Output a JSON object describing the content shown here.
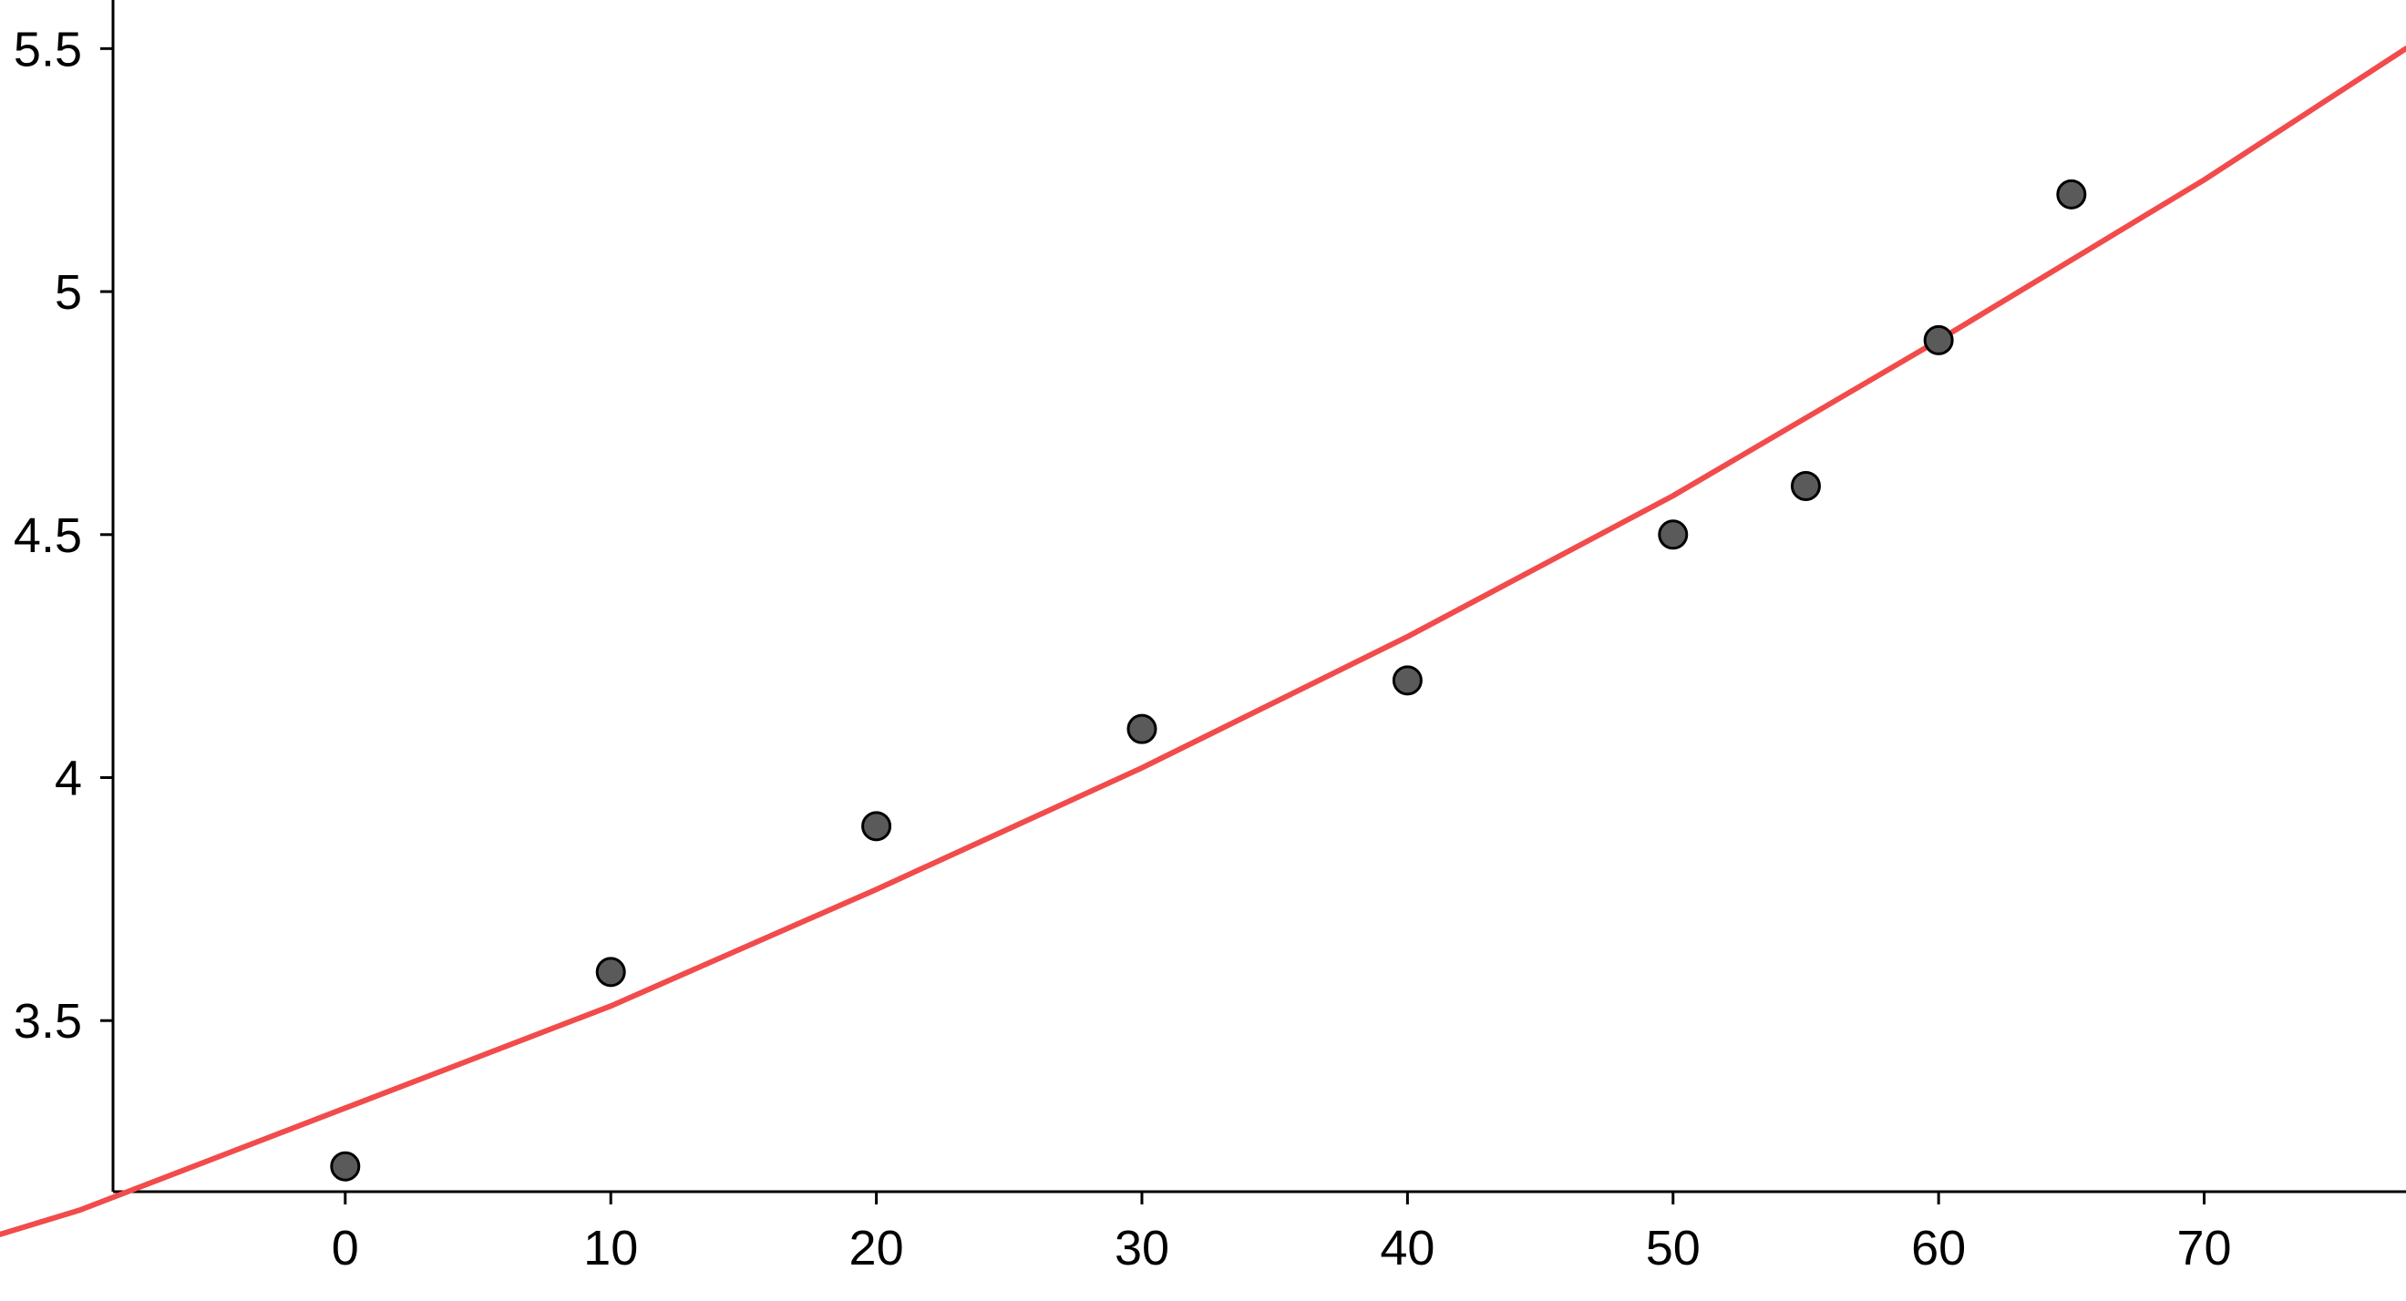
{
  "chart_data": {
    "type": "scatter",
    "title": "",
    "xlabel": "",
    "ylabel": "",
    "xlim": [
      -13,
      77.6
    ],
    "ylim": [
      3.148,
      5.6
    ],
    "x_ticks": [
      0,
      10,
      20,
      30,
      40,
      50,
      60,
      70
    ],
    "x_tick_labels": [
      "0",
      "10",
      "20",
      "30",
      "40",
      "50",
      "60",
      "70"
    ],
    "y_ticks": [
      3.5,
      4,
      4.5,
      5,
      5.5
    ],
    "y_tick_labels": [
      "3.5",
      "4",
      "4.5",
      "5",
      "5.5"
    ],
    "grid": false,
    "series": [
      {
        "kind": "points",
        "color": "#5a5a5a",
        "x": [
          0,
          10,
          20,
          30,
          40,
          50,
          55,
          60,
          65
        ],
        "y": [
          3.2,
          3.6,
          3.9,
          4.1,
          4.2,
          4.5,
          4.6,
          4.9,
          5.2
        ]
      },
      {
        "kind": "fit-curve",
        "color": "#f24b4b",
        "x": [
          -13,
          -10,
          0,
          10,
          20,
          30,
          40,
          50,
          60,
          70,
          77.6
        ],
        "y": [
          3.06,
          3.11,
          3.32,
          3.53,
          3.77,
          4.02,
          4.29,
          4.58,
          4.9,
          5.23,
          5.5
        ]
      }
    ]
  }
}
